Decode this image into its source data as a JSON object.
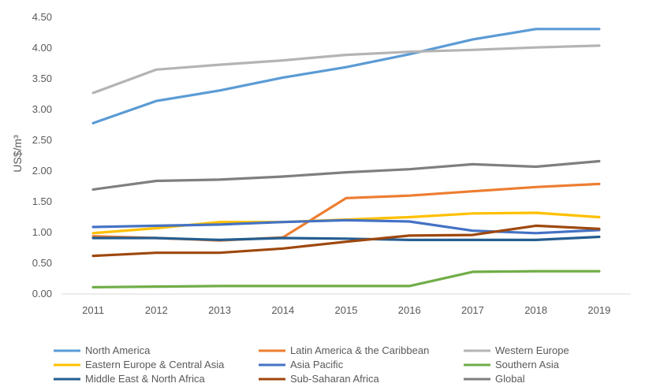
{
  "chart_data": {
    "type": "line",
    "title": "",
    "xlabel": "",
    "ylabel": "US$/m³",
    "ylim": [
      0,
      4.5
    ],
    "yticks": [
      "0.00",
      "0.50",
      "1.00",
      "1.50",
      "2.00",
      "2.50",
      "3.00",
      "3.50",
      "4.00",
      "4.50"
    ],
    "categories": [
      "2011",
      "2012",
      "2013",
      "2014",
      "2015",
      "2016",
      "2017",
      "2018",
      "2019"
    ],
    "grid": false,
    "legend_position": "bottom",
    "series": [
      {
        "name": "North America",
        "color": "#5b9bd5",
        "values": [
          2.78,
          3.14,
          3.31,
          3.52,
          3.69,
          3.9,
          4.14,
          4.31,
          4.31
        ]
      },
      {
        "name": "Latin America & the Caribbean",
        "color": "#ed7d31",
        "values": [
          0.94,
          0.91,
          0.87,
          0.92,
          1.56,
          1.6,
          1.67,
          1.74,
          1.79
        ]
      },
      {
        "name": "Western Europe",
        "color": "#b4b4b4",
        "values": [
          3.27,
          3.65,
          3.73,
          3.8,
          3.89,
          3.94,
          3.97,
          4.01,
          4.04
        ]
      },
      {
        "name": "Eastern Europe & Central Asia",
        "color": "#ffc000",
        "values": [
          0.99,
          1.07,
          1.17,
          1.17,
          1.21,
          1.25,
          1.31,
          1.32,
          1.25
        ]
      },
      {
        "name": "Asia Pacific",
        "color": "#4472c4",
        "values": [
          1.09,
          1.11,
          1.13,
          1.17,
          1.2,
          1.18,
          1.03,
          0.99,
          1.04
        ]
      },
      {
        "name": "Southern Asia",
        "color": "#70ad47",
        "values": [
          0.11,
          0.12,
          0.13,
          0.13,
          0.13,
          0.13,
          0.36,
          0.37,
          0.37
        ]
      },
      {
        "name": "Middle East & North Africa",
        "color": "#255e91",
        "values": [
          0.91,
          0.91,
          0.88,
          0.91,
          0.9,
          0.88,
          0.88,
          0.88,
          0.93
        ]
      },
      {
        "name": "Sub-Saharan Africa",
        "color": "#9e480e",
        "values": [
          0.62,
          0.67,
          0.67,
          0.74,
          0.85,
          0.95,
          0.96,
          1.11,
          1.06
        ]
      },
      {
        "name": "Global",
        "color": "#7f7f7f",
        "values": [
          1.7,
          1.84,
          1.86,
          1.91,
          1.98,
          2.03,
          2.11,
          2.07,
          2.16
        ]
      }
    ]
  }
}
